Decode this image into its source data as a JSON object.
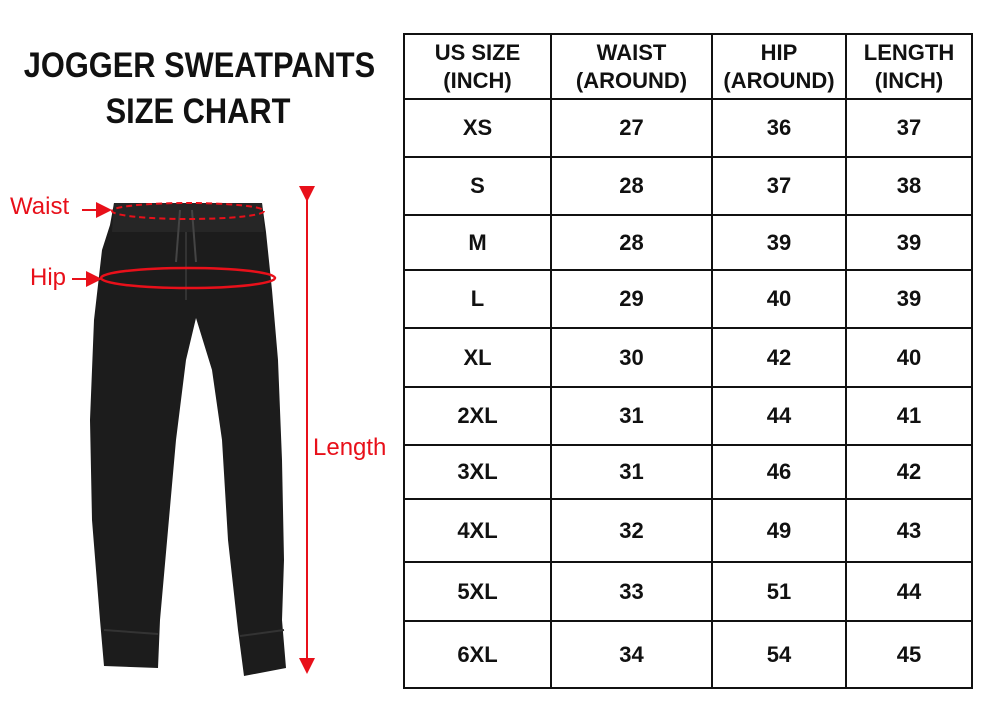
{
  "title": {
    "line1": "JOGGER SWEATPANTS",
    "line2": "SIZE CHART"
  },
  "labels": {
    "waist": "Waist",
    "hip": "Hip",
    "length": "Length"
  },
  "colors": {
    "annotation": "#e8101a",
    "pants": "#1a1a1a"
  },
  "table": {
    "headers": [
      {
        "line1": "US SIZE",
        "line2": "(INCH)"
      },
      {
        "line1": "WAIST",
        "line2": "(AROUND)"
      },
      {
        "line1": "HIP",
        "line2": "(AROUND)"
      },
      {
        "line1": "LENGTH",
        "line2": "(INCH)"
      }
    ],
    "rows": [
      [
        "XS",
        "27",
        "36",
        "37"
      ],
      [
        "S",
        "28",
        "37",
        "38"
      ],
      [
        "M",
        "28",
        "39",
        "39"
      ],
      [
        "L",
        "29",
        "40",
        "39"
      ],
      [
        "XL",
        "30",
        "42",
        "40"
      ],
      [
        "2XL",
        "31",
        "44",
        "41"
      ],
      [
        "3XL",
        "31",
        "46",
        "42"
      ],
      [
        "4XL",
        "32",
        "49",
        "43"
      ],
      [
        "5XL",
        "33",
        "51",
        "44"
      ],
      [
        "6XL",
        "34",
        "54",
        "45"
      ]
    ]
  }
}
